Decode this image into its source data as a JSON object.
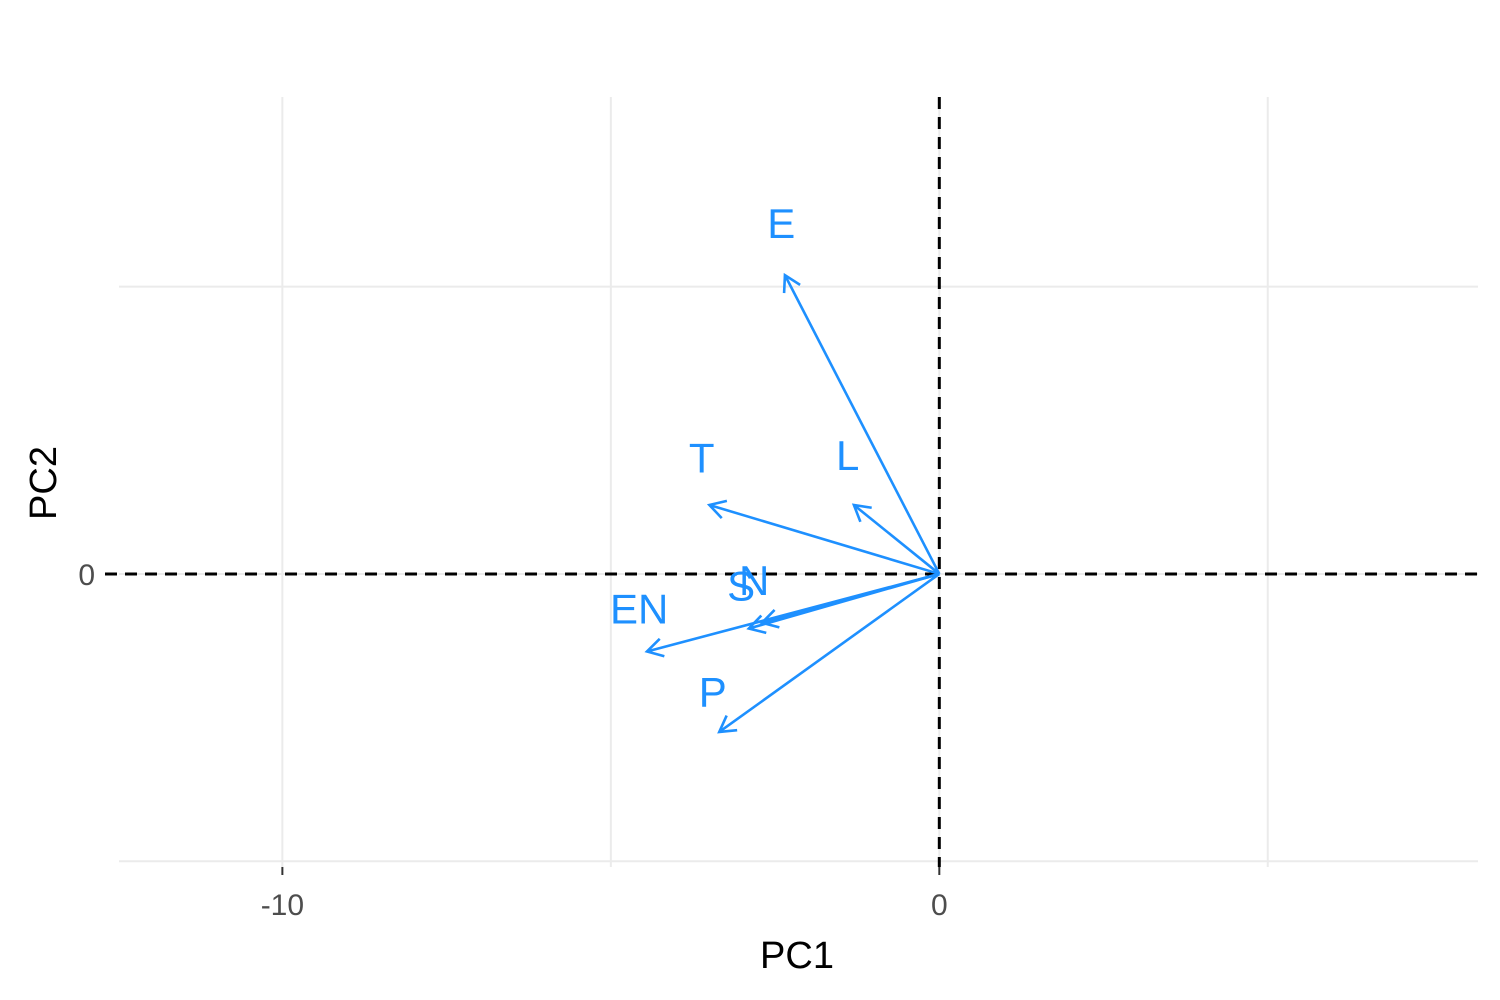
{
  "chart_data": {
    "type": "biplot",
    "xlabel": "PC1",
    "ylabel": "PC2",
    "xlim": [
      -12.7,
      8.2
    ],
    "ylim": [
      -5.1,
      8.3
    ],
    "x_ticks": [
      {
        "value": -10,
        "label": "-10"
      },
      {
        "value": 0,
        "label": "0"
      }
    ],
    "x_minor_grid": [
      -5,
      5
    ],
    "y_ticks": [
      {
        "value": 0,
        "label": "0"
      }
    ],
    "y_minor_grid": [
      -5,
      5
    ],
    "reference_lines": {
      "x": 0,
      "y": 0,
      "style": "dashed"
    },
    "arrow_color": "#1e90ff",
    "vectors": [
      {
        "label": "E",
        "x": -2.35,
        "y": 5.2
      },
      {
        "label": "T",
        "x": -3.5,
        "y": 1.2
      },
      {
        "label": "L",
        "x": -1.3,
        "y": 1.2
      },
      {
        "label": "S",
        "x": -2.9,
        "y": -0.95
      },
      {
        "label": "N",
        "x": -2.7,
        "y": -0.85
      },
      {
        "label": "EN",
        "x": -4.45,
        "y": -1.35
      },
      {
        "label": "P",
        "x": -3.35,
        "y": -2.75
      }
    ],
    "grid": true,
    "legend": "none"
  }
}
